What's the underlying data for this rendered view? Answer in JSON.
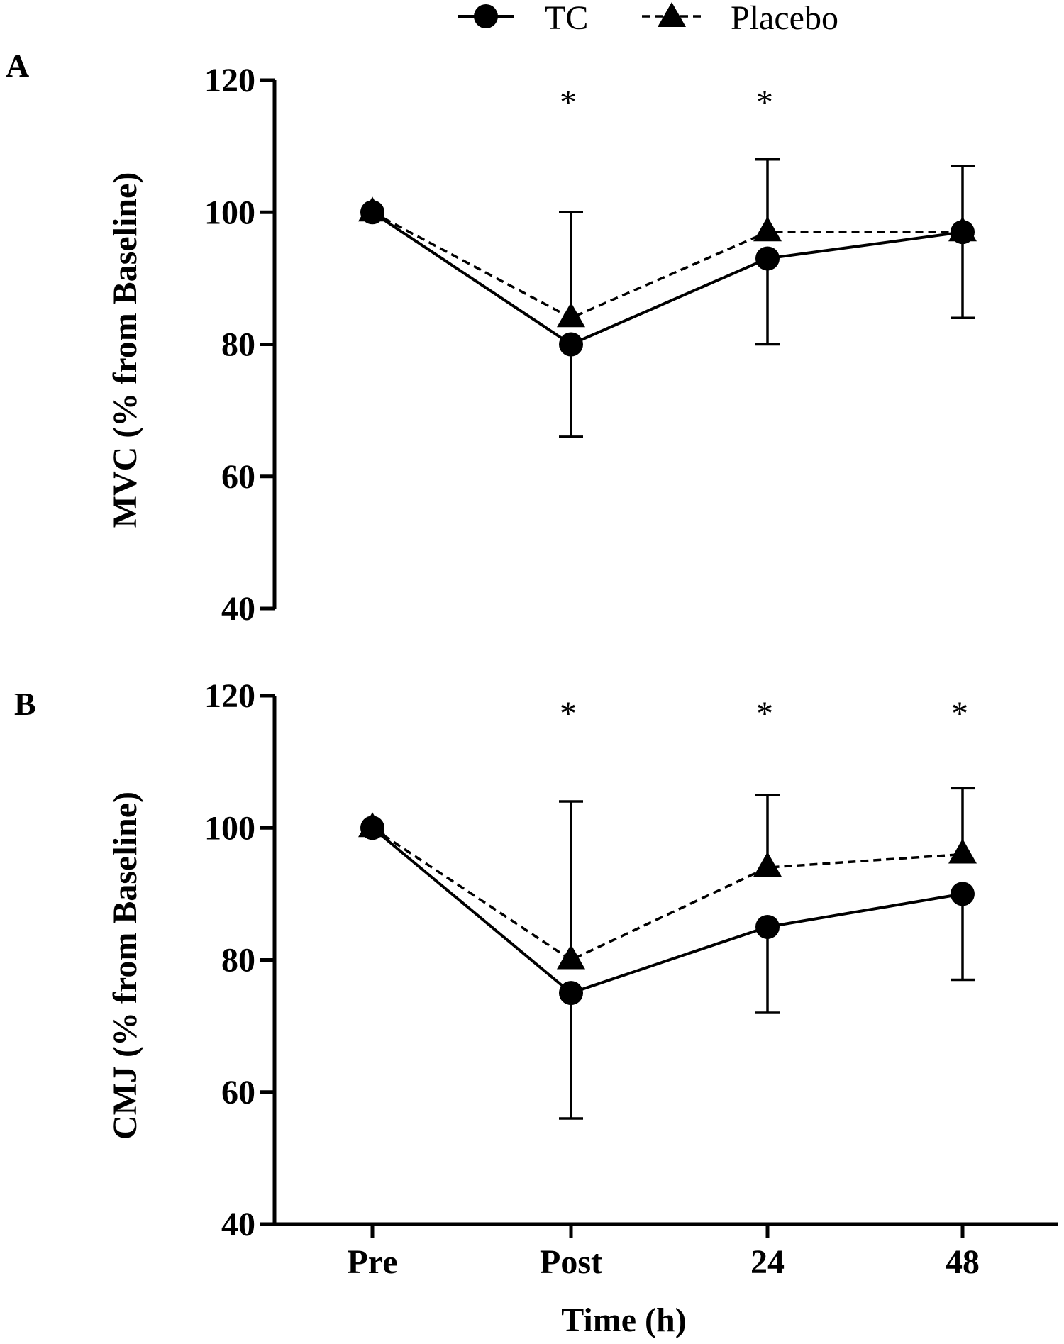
{
  "legend": {
    "tc_label": "TC",
    "placebo_label": "Placebo"
  },
  "chart_data": [
    {
      "type": "line",
      "panel_label": "A",
      "ylabel": "MVC (% from Baseline)",
      "xlabel": "",
      "categories": [
        "Pre",
        "Post",
        "24",
        "48"
      ],
      "ylim": [
        40,
        120
      ],
      "yticks": [
        "40",
        "60",
        "80",
        "100",
        "120"
      ],
      "series": [
        {
          "name": "TC",
          "style": "solid",
          "marker": "circle",
          "values": [
            100,
            80,
            93,
            97
          ],
          "error_lower": [
            0,
            66,
            80,
            84
          ]
        },
        {
          "name": "Placebo",
          "style": "dashed",
          "marker": "triangle",
          "values": [
            100,
            84,
            97,
            97
          ],
          "error_upper": [
            0,
            100,
            108,
            107
          ]
        }
      ],
      "annotations": [
        {
          "category": "Post",
          "text": "*"
        },
        {
          "category": "24",
          "text": "*"
        }
      ]
    },
    {
      "type": "line",
      "panel_label": "B",
      "ylabel": "CMJ (% from Baseline)",
      "xlabel": "Time (h)",
      "categories": [
        "Pre",
        "Post",
        "24",
        "48"
      ],
      "ylim": [
        40,
        120
      ],
      "yticks": [
        "40",
        "60",
        "80",
        "100",
        "120"
      ],
      "series": [
        {
          "name": "TC",
          "style": "solid",
          "marker": "circle",
          "values": [
            100,
            75,
            85,
            90
          ],
          "error_lower": [
            0,
            56,
            72,
            77
          ]
        },
        {
          "name": "Placebo",
          "style": "dashed",
          "marker": "triangle",
          "values": [
            100,
            80,
            94,
            96
          ],
          "error_upper": [
            0,
            104,
            105,
            106
          ]
        }
      ],
      "annotations": [
        {
          "category": "Post",
          "text": "*"
        },
        {
          "category": "24",
          "text": "*"
        },
        {
          "category": "48",
          "text": "*"
        }
      ]
    }
  ]
}
